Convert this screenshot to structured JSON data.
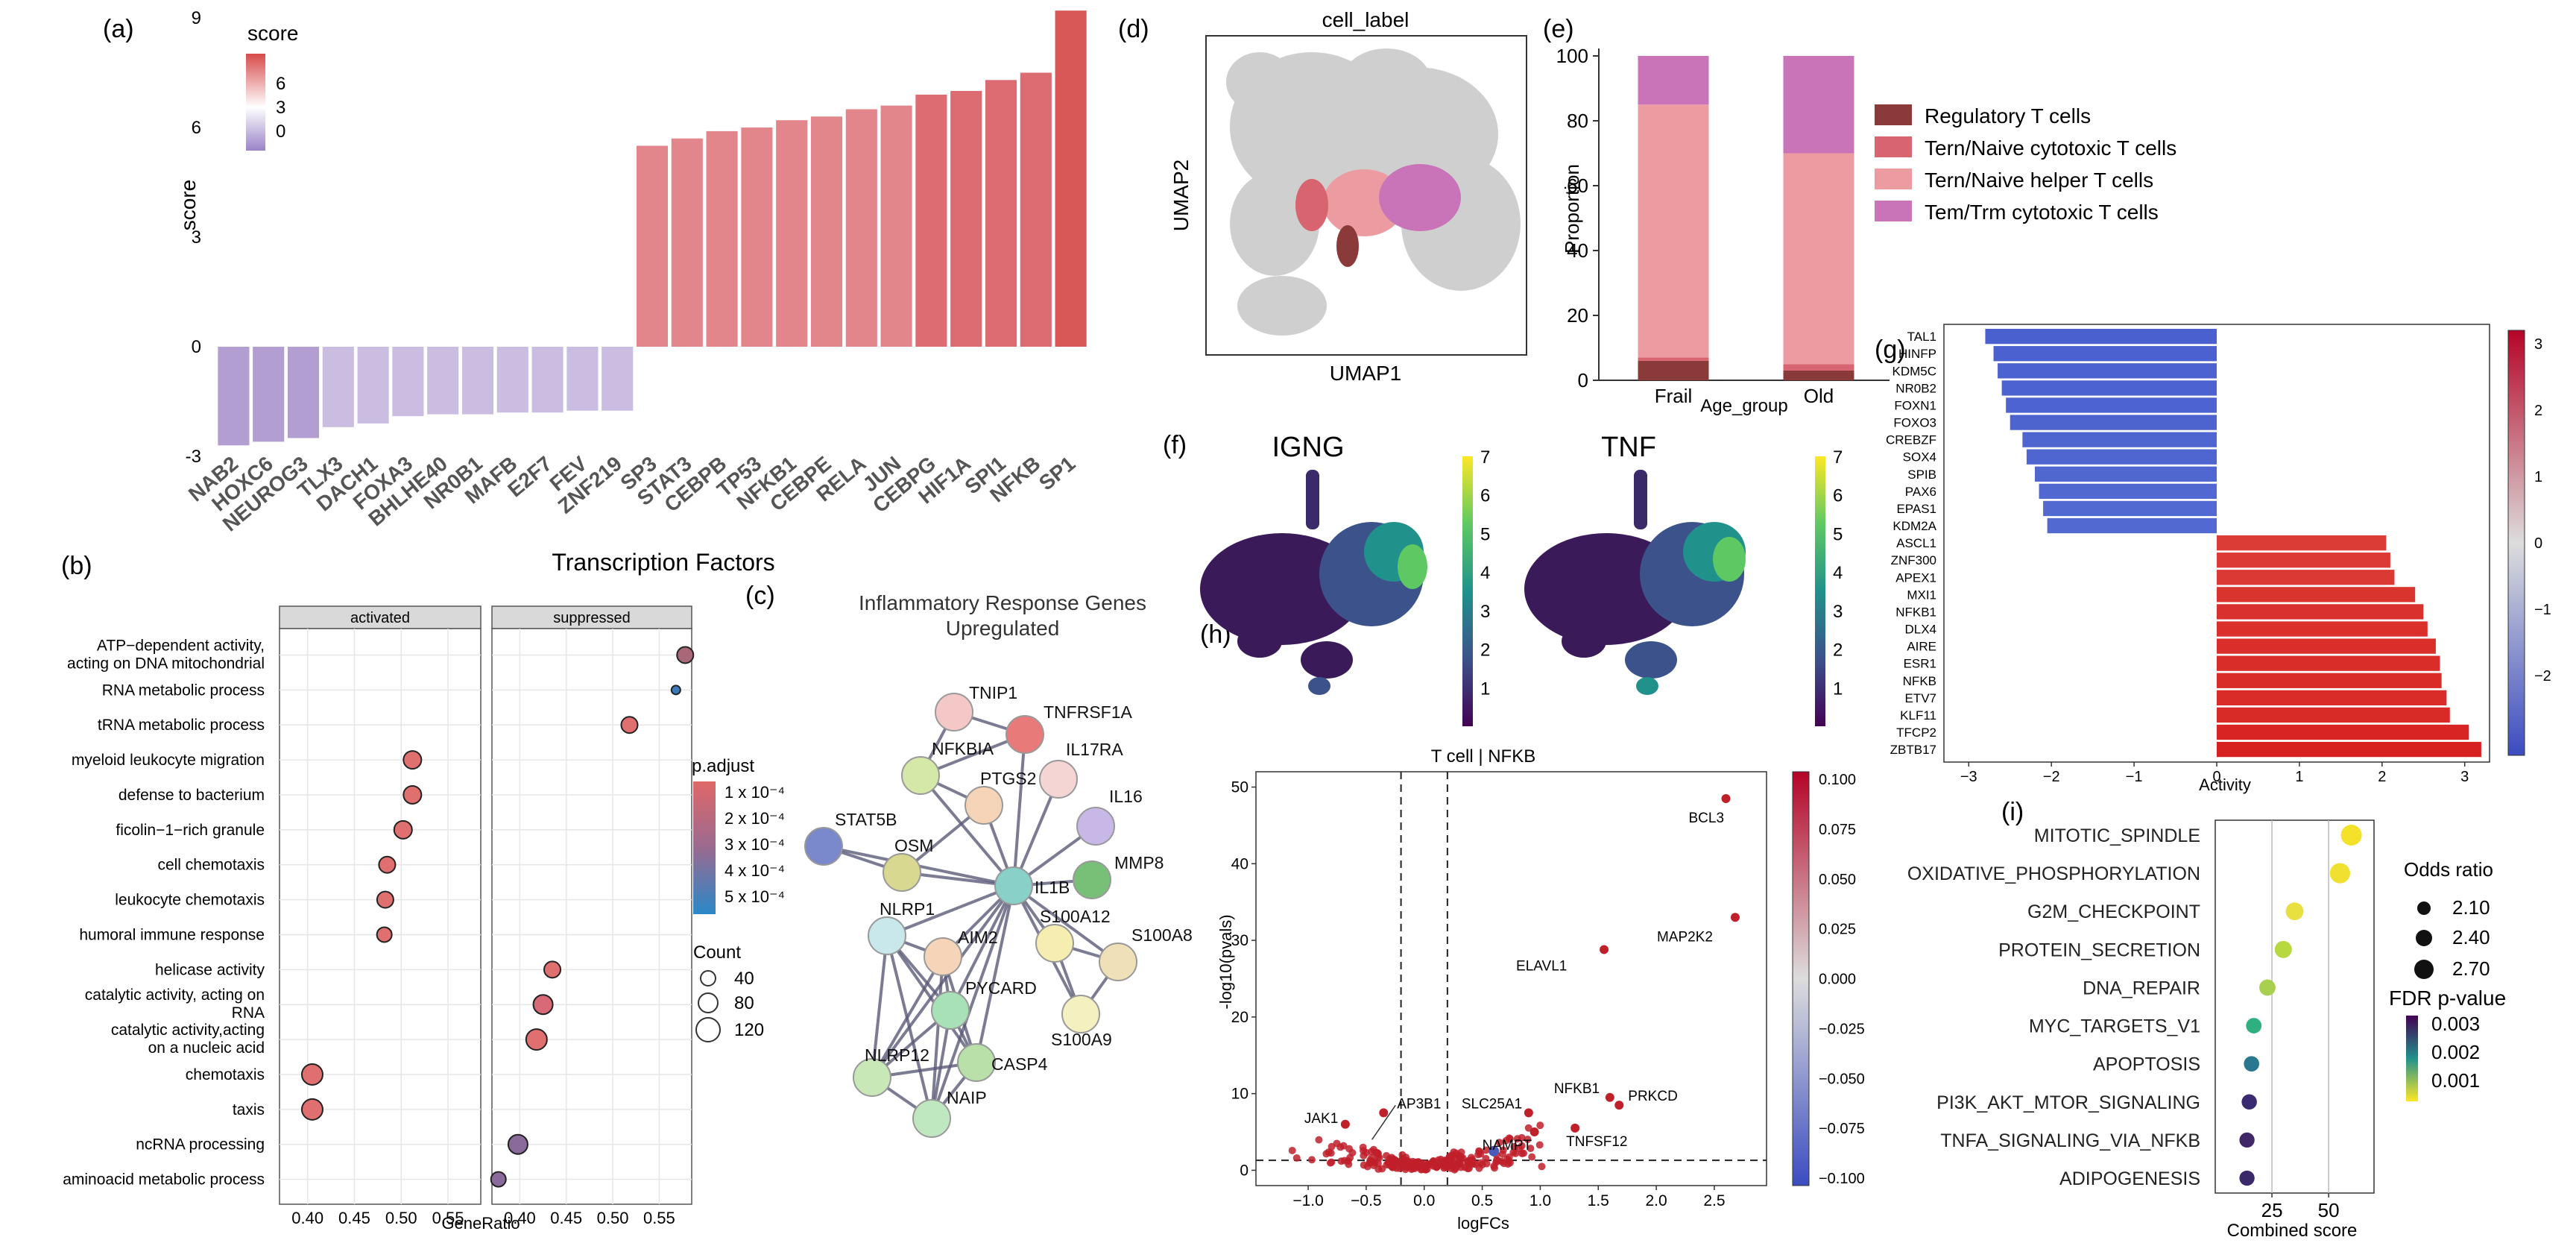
{
  "colors": {
    "pos_bar": "#e08088",
    "neg_bar": "#c4b4dc",
    "grid": "#dddddd",
    "strip": "#d9d9d9",
    "dot_red": "#e07070",
    "dot_blue": "#3a7ab8",
    "dot_purple": "#8a6a9a",
    "reg": "#8b3a3a",
    "cyto": "#d86470",
    "helper": "#ec9ca0",
    "trm": "#c974b8",
    "gray_cells": "#cfcfcf",
    "act_neg": "#4a6fc8",
    "act_pos": "#d84040"
  },
  "panels": {
    "a": {
      "label": "(a)"
    },
    "b": {
      "label": "(b)"
    },
    "c": {
      "label": "(c)"
    },
    "d": {
      "label": "(d)"
    },
    "e": {
      "label": "(e)"
    },
    "f": {
      "label": "(f)"
    },
    "g": {
      "label": "(g)"
    },
    "h": {
      "label": "(h)"
    },
    "i": {
      "label": "(i)"
    }
  },
  "chart_data": [
    {
      "id": "a",
      "type": "bar",
      "xlabel": "Transcription Factors",
      "ylabel": "score",
      "legend_title": "score",
      "legend_ticks": [
        "6",
        "3",
        "0"
      ],
      "ylim": [
        -3,
        9
      ],
      "yticks": [
        "-3",
        "0",
        "3",
        "6",
        "9"
      ],
      "categories": [
        "NAB2",
        "HOXC6",
        "NEUROG3",
        "TLX3",
        "DACH1",
        "FOXA3",
        "BHLHE40",
        "NR0B1",
        "MAFB",
        "E2F7",
        "FEV",
        "ZNF219",
        "SP3",
        "STAT3",
        "CEBPB",
        "TP53",
        "NFKB1",
        "CEBPE",
        "RELA",
        "JUN",
        "CEBPG",
        "HIF1A",
        "SPI1",
        "NFKB",
        "SP1"
      ],
      "values": [
        -2.7,
        -2.6,
        -2.5,
        -2.2,
        -2.1,
        -1.9,
        -1.85,
        -1.85,
        -1.8,
        -1.8,
        -1.75,
        -1.75,
        5.5,
        5.7,
        5.9,
        6.0,
        6.2,
        6.3,
        6.5,
        6.6,
        6.9,
        7.0,
        7.3,
        7.5,
        9.2
      ]
    },
    {
      "id": "b",
      "type": "scatter",
      "facets": [
        "activated",
        "suppressed"
      ],
      "xlabel": "GeneRatio",
      "xlim": [
        0.37,
        0.58
      ],
      "xticks": [
        "0.40",
        "0.45",
        "0.50",
        "0.55"
      ],
      "xticks2": [
        "0.40",
        "0.45",
        "0.50",
        "0.55"
      ],
      "size_legend_title": "Count",
      "size_legend": [
        "40",
        "80",
        "120"
      ],
      "color_legend_title": "p.adjust",
      "color_legend": [
        "1 x 10⁻⁴",
        "2 x 10⁻⁴",
        "3 x 10⁻⁴",
        "4 x 10⁻⁴",
        "5 x 10⁻⁴"
      ],
      "terms": [
        {
          "label": [
            "ATP−dependent activity,",
            "acting on DNA mitochondrial"
          ],
          "facet": 1,
          "x": 0.578,
          "size": 11,
          "color": "#a86878"
        },
        {
          "label": [
            "RNA metabolic process"
          ],
          "facet": 1,
          "x": 0.568,
          "size": 6,
          "color": "#3a7ab8"
        },
        {
          "label": [
            "tRNA metabolic process"
          ],
          "facet": 1,
          "x": 0.518,
          "size": 11,
          "color": "#e07070"
        },
        {
          "label": [
            "myeloid leukocyte migration"
          ],
          "facet": 0,
          "x": 0.512,
          "size": 12,
          "color": "#e07070"
        },
        {
          "label": [
            "defense to bacterium"
          ],
          "facet": 0,
          "x": 0.512,
          "size": 12,
          "color": "#e07070"
        },
        {
          "label": [
            "ficolin−1−rich granule"
          ],
          "facet": 0,
          "x": 0.502,
          "size": 12,
          "color": "#e07070"
        },
        {
          "label": [
            "cell chemotaxis"
          ],
          "facet": 0,
          "x": 0.485,
          "size": 11,
          "color": "#e07070"
        },
        {
          "label": [
            "leukocyte chemotaxis"
          ],
          "facet": 0,
          "x": 0.483,
          "size": 11,
          "color": "#e07070"
        },
        {
          "label": [
            "humoral immune response"
          ],
          "facet": 0,
          "x": 0.482,
          "size": 10,
          "color": "#e07070"
        },
        {
          "label": [
            "helicase activity"
          ],
          "facet": 1,
          "x": 0.435,
          "size": 11,
          "color": "#e07070"
        },
        {
          "label": [
            "catalytic activity, acting on",
            "RNA"
          ],
          "facet": 1,
          "x": 0.425,
          "size": 13,
          "color": "#d86a78"
        },
        {
          "label": [
            "catalytic activity,acting",
            "on a nucleic acid"
          ],
          "facet": 1,
          "x": 0.418,
          "size": 14,
          "color": "#e07070"
        },
        {
          "label": [
            "chemotaxis"
          ],
          "facet": 0,
          "x": 0.405,
          "size": 14,
          "color": "#e07070"
        },
        {
          "label": [
            "taxis"
          ],
          "facet": 0,
          "x": 0.405,
          "size": 14,
          "color": "#e07070"
        },
        {
          "label": [
            "ncRNA processing"
          ],
          "facet": 1,
          "x": 0.398,
          "size": 13,
          "color": "#8a6a9a"
        },
        {
          "label": [
            "aminoacid metabolic process"
          ],
          "facet": 1,
          "x": 0.377,
          "size": 10,
          "color": "#8a6a9a"
        }
      ]
    },
    {
      "id": "c",
      "type": "network",
      "title": [
        "Inflammatory Response Genes",
        "Upregulated"
      ],
      "nodes": [
        {
          "id": "TNIP1",
          "color": "#f5c8c8"
        },
        {
          "id": "TNFRSF1A",
          "color": "#e87a7a"
        },
        {
          "id": "NFKBIA",
          "color": "#d4e8a8"
        },
        {
          "id": "PTGS2",
          "color": "#f5d4b8"
        },
        {
          "id": "IL17RA",
          "color": "#f5d4d4"
        },
        {
          "id": "IL16",
          "color": "#c8b8e8"
        },
        {
          "id": "STAT5B",
          "color": "#7a88cc"
        },
        {
          "id": "OSM",
          "color": "#d8d890"
        },
        {
          "id": "IL1B",
          "color": "#88d0c8"
        },
        {
          "id": "MMP8",
          "color": "#78c078"
        },
        {
          "id": "NLRP1",
          "color": "#c8e8ec"
        },
        {
          "id": "AIM2",
          "color": "#f5d4b8"
        },
        {
          "id": "S100A12",
          "color": "#f5eeb0"
        },
        {
          "id": "S100A8",
          "color": "#f0e0b8"
        },
        {
          "id": "PYCARD",
          "color": "#a8e0b8"
        },
        {
          "id": "S100A9",
          "color": "#f5f0c0"
        },
        {
          "id": "NLRP12",
          "color": "#c8e8b8"
        },
        {
          "id": "CASP4",
          "color": "#b8e0a8"
        },
        {
          "id": "NAIP",
          "color": "#c0e8c0"
        }
      ]
    },
    {
      "id": "d",
      "type": "scatter",
      "title": "cell_label",
      "xlabel": "UMAP1",
      "ylabel": "UMAP2"
    },
    {
      "id": "e",
      "type": "bar",
      "stacked": true,
      "categories": [
        "Frail",
        "Old"
      ],
      "xlabel": "Age_group",
      "ylabel": "Proportion",
      "ylim": [
        0,
        100
      ],
      "yticks": [
        "0",
        "20",
        "40",
        "60",
        "80",
        "100"
      ],
      "series": [
        {
          "name": "Regulatory T cells",
          "values": [
            6,
            3
          ]
        },
        {
          "name": "Tern/Naive cytotoxic T cells",
          "values": [
            1,
            2
          ]
        },
        {
          "name": "Tern/Naive helper T cells",
          "values": [
            78,
            65
          ]
        },
        {
          "name": "Tem/Trm cytotoxic T cells",
          "values": [
            15,
            30
          ]
        }
      ]
    },
    {
      "id": "f",
      "type": "scatter",
      "panels": [
        {
          "title": "IGNG",
          "cbar_ticks": [
            "7",
            "6",
            "5",
            "4",
            "3",
            "2",
            "1"
          ]
        },
        {
          "title": "TNF",
          "cbar_ticks": [
            "7",
            "6",
            "5",
            "4",
            "3",
            "2",
            "1"
          ]
        }
      ],
      "clim": [
        0,
        7
      ]
    },
    {
      "id": "g",
      "type": "bar",
      "orientation": "horizontal",
      "xlabel": "Activity",
      "xlim": [
        -3.3,
        3.3
      ],
      "xticks": [
        "−3",
        "−2",
        "−1",
        "0",
        "1",
        "2",
        "3"
      ],
      "cbar_ticks": [
        "3",
        "2",
        "1",
        "0",
        "−1",
        "−2"
      ],
      "categories": [
        "TAL1",
        "HINFP",
        "KDM5C",
        "NR0B2",
        "FOXN1",
        "FOXO3",
        "CREBZF",
        "SOX4",
        "SPIB",
        "PAX6",
        "EPAS1",
        "KDM2A",
        "ASCL1",
        "ZNF300",
        "APEX1",
        "MXI1",
        "NFKB1",
        "DLX4",
        "AIRE",
        "ESR1",
        "NFKB",
        "ETV7",
        "KLF11",
        "TFCP2",
        "ZBTB17"
      ],
      "values": [
        -2.8,
        -2.7,
        -2.65,
        -2.6,
        -2.55,
        -2.5,
        -2.35,
        -2.3,
        -2.2,
        -2.15,
        -2.1,
        -2.05,
        2.05,
        2.1,
        2.15,
        2.4,
        2.5,
        2.55,
        2.65,
        2.7,
        2.72,
        2.78,
        2.82,
        3.05,
        3.2
      ]
    },
    {
      "id": "h",
      "type": "scatter",
      "title": "T cell | NFKB",
      "xlabel": "logFCs",
      "ylabel": "-log10(pvals)",
      "xlim": [
        -1.45,
        2.95
      ],
      "ylim": [
        -2,
        52
      ],
      "xticks": [
        "−1.0",
        "−0.5",
        "0.0",
        "0.5",
        "1.0",
        "1.5",
        "2.0",
        "2.5"
      ],
      "yticks": [
        "0",
        "10",
        "20",
        "30",
        "40",
        "50"
      ],
      "cbar_ticks": [
        "0.100",
        "0.075",
        "0.050",
        "0.025",
        "0.000",
        "−0.025",
        "−0.050",
        "−0.075",
        "−0.100"
      ],
      "labeled_points": [
        {
          "label": "BCL3",
          "x": 2.6,
          "y": 48.5
        },
        {
          "label": "MAP2K2",
          "x": 2.68,
          "y": 33
        },
        {
          "label": "ELAVL1",
          "x": 1.55,
          "y": 28.8
        },
        {
          "label": "NFKB1",
          "x": 1.6,
          "y": 9.5
        },
        {
          "label": "PRKCD",
          "x": 1.68,
          "y": 8.5
        },
        {
          "label": "SLC25A1",
          "x": 0.9,
          "y": 7.5
        },
        {
          "label": "TNFSF12",
          "x": 1.3,
          "y": 5.5
        },
        {
          "label": "NAMPT",
          "x": 0.95,
          "y": 5.0
        },
        {
          "label": "AP3B1",
          "x": -0.35,
          "y": 7.5
        },
        {
          "label": "JAK1",
          "x": -0.68,
          "y": 6.0
        }
      ]
    },
    {
      "id": "i",
      "type": "scatter",
      "xlabel": "Combined score",
      "xticks": [
        "25",
        "50"
      ],
      "xlim": [
        0,
        70
      ],
      "size_legend_title": "Odds ratio",
      "size_legend": [
        "2.10",
        "2.40",
        "2.70"
      ],
      "color_legend_title": "FDR p-value",
      "color_legend": [
        "0.003",
        "0.002",
        "0.001"
      ],
      "terms": [
        {
          "label": "MITOTIC_SPINDLE",
          "x": 60,
          "color": "#f5e02a"
        },
        {
          "label": "OXIDATIVE_PHOSPHORYLATION",
          "x": 55,
          "color": "#f0e030"
        },
        {
          "label": "G2M_CHECKPOINT",
          "x": 35,
          "color": "#e8e040"
        },
        {
          "label": "PROTEIN_SECRETION",
          "x": 30,
          "color": "#b8d840"
        },
        {
          "label": "DNA_REPAIR",
          "x": 23,
          "color": "#a8d050"
        },
        {
          "label": "MYC_TARGETS_V1",
          "x": 17,
          "color": "#30b080"
        },
        {
          "label": "APOPTOSIS",
          "x": 16,
          "color": "#2a7890"
        },
        {
          "label": "PI3K_AKT_MTOR_SIGNALING",
          "x": 15,
          "color": "#3a2a70"
        },
        {
          "label": "TNFA_SIGNALING_VIA_NFKB",
          "x": 14,
          "color": "#402868"
        },
        {
          "label": "ADIPOGENESIS",
          "x": 14,
          "color": "#3a2a6a"
        }
      ]
    }
  ]
}
